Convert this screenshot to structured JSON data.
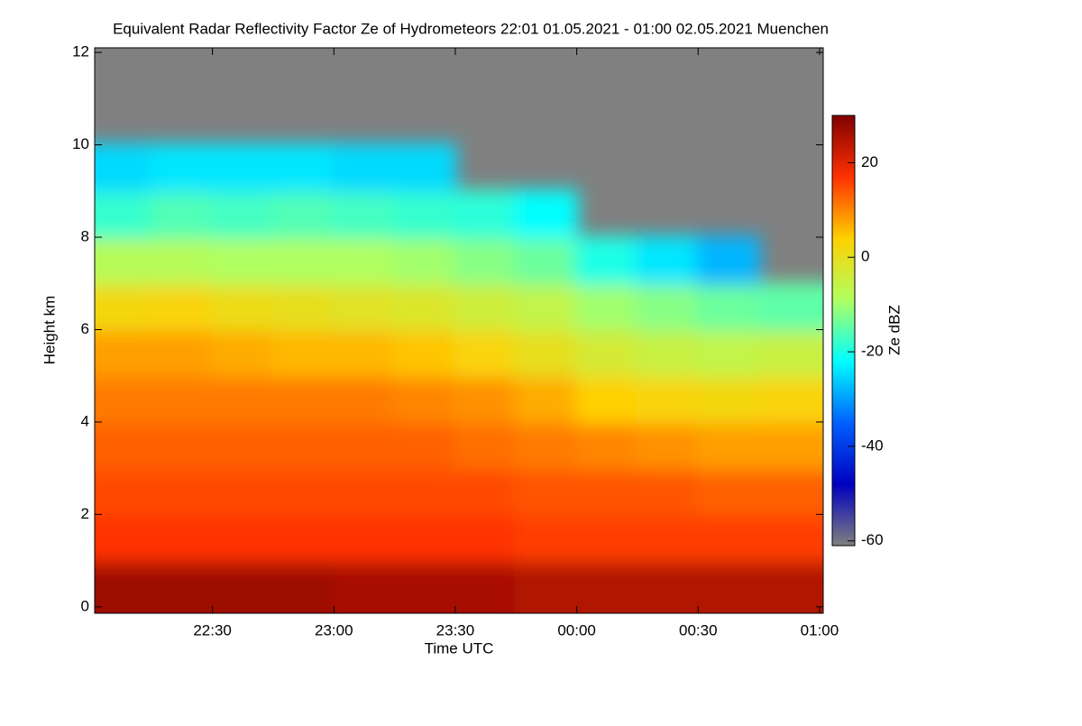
{
  "chart_data": {
    "type": "heatmap",
    "title": "Equivalent Radar Reflectivity Factor Ze of Hydrometeors   22:01 01.05.2021 - 01:00 02.05.2021 Muenchen",
    "xlabel": "Time UTC",
    "ylabel": "Height km",
    "colorbar_label": "Ze dBZ",
    "x": [
      22.125,
      22.375,
      22.625,
      22.875,
      23.125,
      23.375,
      23.625,
      23.875,
      24.125,
      24.375,
      24.625,
      24.875
    ],
    "y": [
      0.5,
      1.5,
      2.5,
      3.5,
      4.5,
      5.5,
      6.5,
      7.5,
      8.5,
      9.5,
      10.5,
      11.5
    ],
    "z": [
      [
        27,
        27,
        27,
        27,
        26,
        26,
        26,
        25,
        25,
        25,
        25,
        25
      ],
      [
        17,
        17,
        17,
        17,
        17,
        17,
        17,
        16,
        16,
        16,
        16,
        16
      ],
      [
        15,
        15,
        15,
        15,
        15,
        15,
        15,
        14,
        14,
        14,
        13,
        13
      ],
      [
        13,
        13,
        13,
        13,
        13,
        13,
        12,
        11,
        10,
        9,
        8,
        8
      ],
      [
        11,
        11,
        11,
        11,
        11,
        10,
        9,
        7,
        4,
        3,
        2,
        3
      ],
      [
        8,
        8,
        7,
        6,
        6,
        5,
        3,
        0,
        -3,
        -5,
        -6,
        -5
      ],
      [
        2,
        3,
        1,
        0,
        -1,
        -2,
        -4,
        -6,
        -10,
        -12,
        -14,
        -15
      ],
      [
        -8,
        -8,
        -9,
        -9,
        -9,
        -10,
        -12,
        -14,
        -20,
        -24,
        -28,
        null
      ],
      [
        -18,
        -16,
        -17,
        -16,
        -17,
        -18,
        -19,
        -22,
        null,
        null,
        null,
        null
      ],
      [
        -25,
        -24,
        -24,
        -24,
        -25,
        -25,
        null,
        null,
        null,
        null,
        null,
        null
      ],
      [
        null,
        null,
        null,
        null,
        null,
        null,
        null,
        null,
        null,
        null,
        null,
        null
      ],
      [
        null,
        null,
        null,
        null,
        null,
        null,
        null,
        null,
        null,
        null,
        null,
        null
      ]
    ],
    "xlim": [
      22.015,
      25.015
    ],
    "xticks": [
      {
        "value": 22.5,
        "label": "22:30"
      },
      {
        "value": 23,
        "label": "23:00"
      },
      {
        "value": 23.5,
        "label": "23:30"
      },
      {
        "value": 24,
        "label": "00:00"
      },
      {
        "value": 24.5,
        "label": "00:30"
      },
      {
        "value": 25,
        "label": "01:00"
      }
    ],
    "ylim": [
      -0.14,
      12.1
    ],
    "yticks": [
      0,
      2,
      4,
      6,
      8,
      10,
      12
    ],
    "zlim": [
      -61,
      30
    ],
    "zticks": [
      -60,
      -40,
      -20,
      0,
      20
    ],
    "colormap": [
      "#808080",
      "#0000c0",
      "#0060ff",
      "#00ffff",
      "#b0ff60",
      "#ffd000",
      "#ff3000",
      "#800000"
    ],
    "missing_color": "#808080"
  }
}
